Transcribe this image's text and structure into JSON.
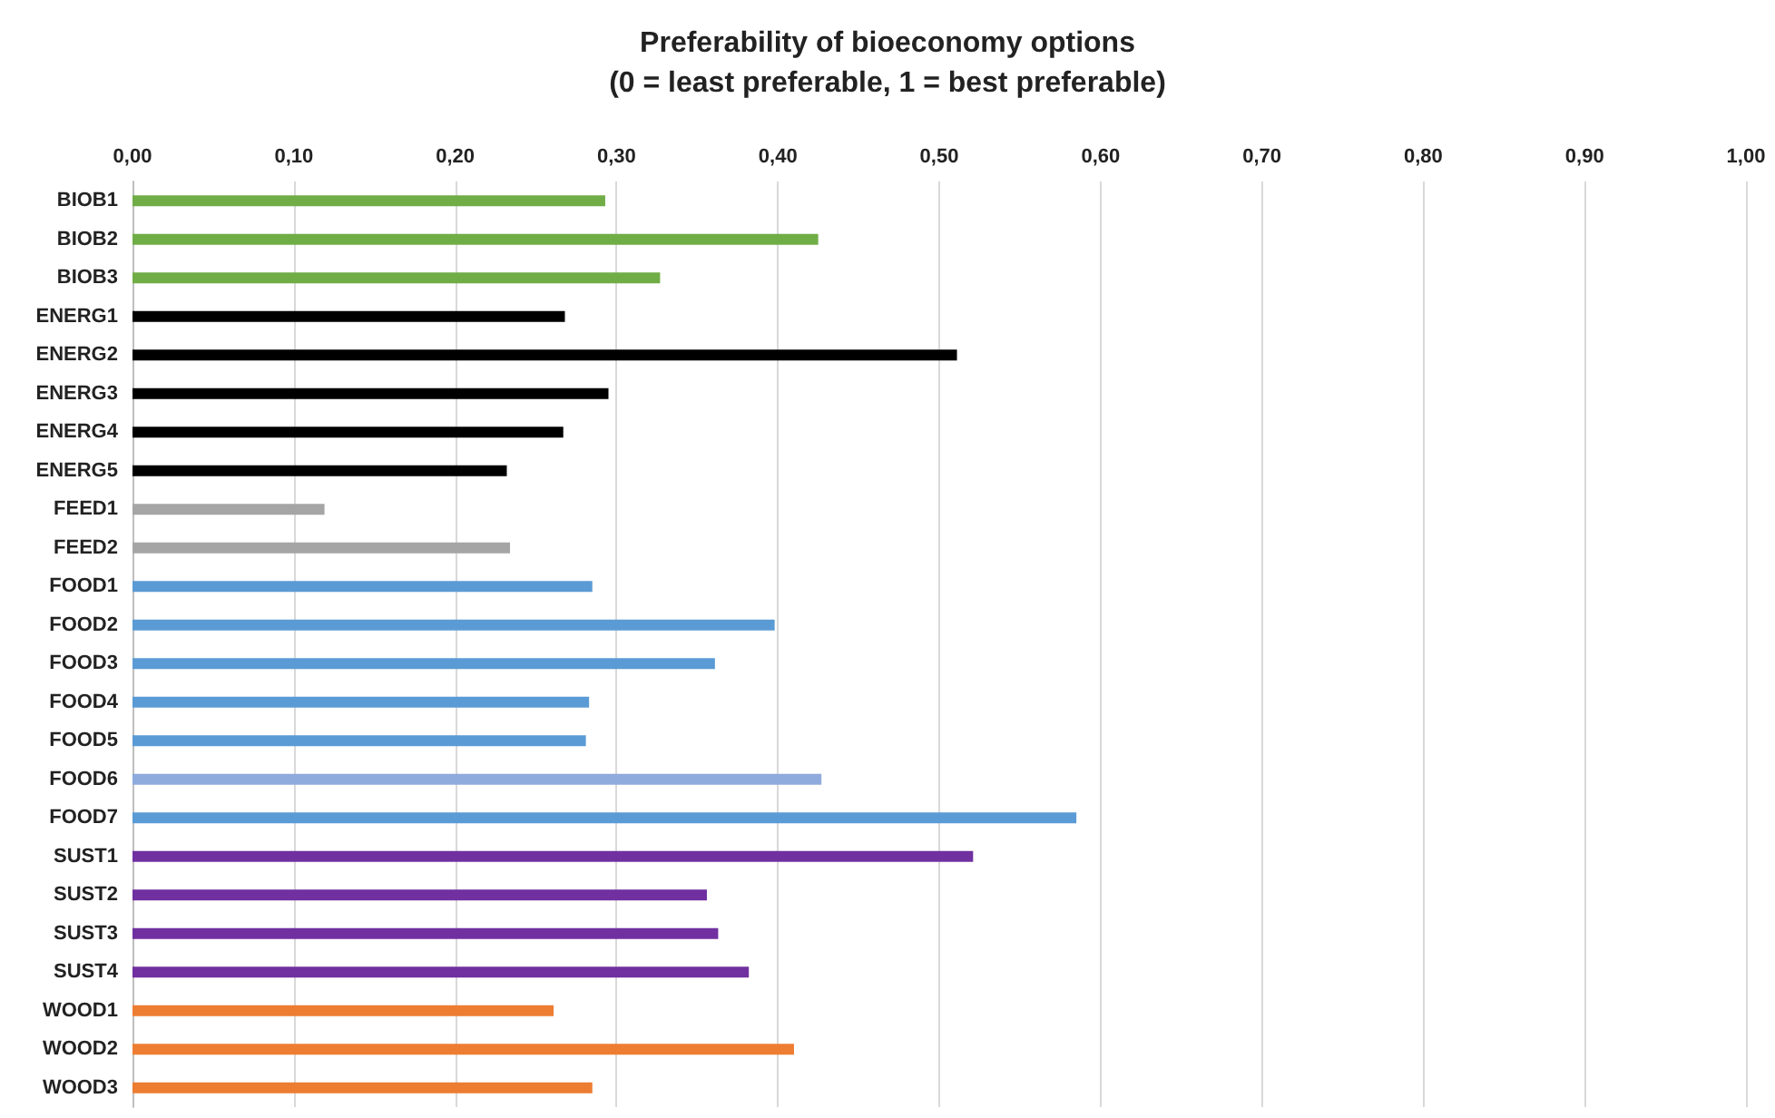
{
  "chart_data": {
    "type": "bar",
    "orientation": "horizontal",
    "title": "Preferability of bioeconomy options\n(0 = least preferable, 1 = best preferable)",
    "categories": [
      "BIOB1",
      "BIOB2",
      "BIOB3",
      "ENERG1",
      "ENERG2",
      "ENERG3",
      "ENERG4",
      "ENERG5",
      "FEED1",
      "FEED2",
      "FOOD1",
      "FOOD2",
      "FOOD3",
      "FOOD4",
      "FOOD5",
      "FOOD6",
      "FOOD7",
      "SUST1",
      "SUST2",
      "SUST3",
      "SUST4",
      "WOOD1",
      "WOOD2",
      "WOOD3"
    ],
    "values": [
      0.293,
      0.425,
      0.327,
      0.268,
      0.511,
      0.295,
      0.267,
      0.232,
      0.119,
      0.234,
      0.285,
      0.398,
      0.361,
      0.283,
      0.281,
      0.427,
      0.585,
      0.521,
      0.356,
      0.363,
      0.382,
      0.261,
      0.41,
      0.285
    ],
    "colors": [
      "#70ad47",
      "#70ad47",
      "#70ad47",
      "#000000",
      "#000000",
      "#000000",
      "#000000",
      "#000000",
      "#a5a5a5",
      "#a5a5a5",
      "#5b9bd5",
      "#5b9bd5",
      "#5b9bd5",
      "#5b9bd5",
      "#5b9bd5",
      "#8faadc",
      "#5b9bd5",
      "#7030a0",
      "#7030a0",
      "#7030a0",
      "#7030a0",
      "#ed7d31",
      "#ed7d31",
      "#ed7d31"
    ],
    "xlim": [
      0,
      1
    ],
    "xticks": [
      {
        "value": 0,
        "label": "0,00"
      },
      {
        "value": 0.1,
        "label": "0,10"
      },
      {
        "value": 0.2,
        "label": "0,20"
      },
      {
        "value": 0.3,
        "label": "0,30"
      },
      {
        "value": 0.4,
        "label": "0,40"
      },
      {
        "value": 0.5,
        "label": "0,50"
      },
      {
        "value": 0.6,
        "label": "0,60"
      },
      {
        "value": 0.7,
        "label": "0,70"
      },
      {
        "value": 0.8,
        "label": "0,80"
      },
      {
        "value": 0.9,
        "label": "0,90"
      },
      {
        "value": 1,
        "label": "1,00"
      }
    ],
    "grid": "x"
  }
}
